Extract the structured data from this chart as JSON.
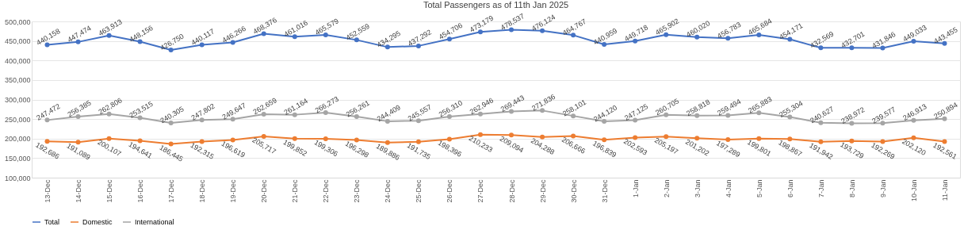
{
  "chart_data": {
    "type": "line",
    "title": "Total Passengers as of 11th Jan 2025",
    "categories": [
      "13-Dec",
      "14-Dec",
      "15-Dec",
      "16-Dec",
      "17-Dec",
      "18-Dec",
      "19-Dec",
      "20-Dec",
      "21-Dec",
      "22-Dec",
      "23-Dec",
      "24-Dec",
      "25-Dec",
      "26-Dec",
      "27-Dec",
      "28-Dec",
      "29-Dec",
      "30-Dec",
      "31-Dec",
      "1-Jan",
      "2-Jan",
      "3-Jan",
      "4-Jan",
      "5-Jan",
      "6-Jan",
      "7-Jan",
      "8-Jan",
      "9-Jan",
      "10-Jan",
      "11-Jan"
    ],
    "series": [
      {
        "name": "Total",
        "color": "#4472c4",
        "values": [
          440158,
          447474,
          463913,
          448156,
          426750,
          440117,
          446266,
          468376,
          461016,
          465579,
          452559,
          434295,
          437292,
          454706,
          473179,
          478537,
          476124,
          464767,
          440959,
          449718,
          465902,
          460020,
          456783,
          465684,
          454171,
          432569,
          432701,
          431846,
          449033,
          443455
        ],
        "value_labels": [
          "440,158",
          "447,474",
          "463,913",
          "448,156",
          "426,750",
          "440,117",
          "446,266",
          "468,376",
          "461,016",
          "465,579",
          "452,559",
          "434,295",
          "437,292",
          "454,706",
          "473,179",
          "478,537",
          "476,124",
          "464,767",
          "440,959",
          "449,718",
          "465,902",
          "460,020",
          "456,783",
          "465,684",
          "454,171",
          "432,569",
          "432,701",
          "431,846",
          "449,033",
          "443,455"
        ]
      },
      {
        "name": "Domestic",
        "color": "#ed7d31",
        "values": [
          192686,
          191089,
          200107,
          194641,
          186445,
          192315,
          196619,
          205717,
          199852,
          199306,
          196298,
          189886,
          191735,
          198396,
          210233,
          209094,
          204288,
          206666,
          196839,
          202593,
          205197,
          201202,
          197289,
          199801,
          198867,
          191942,
          193729,
          192269,
          202120,
          192561
        ],
        "value_labels": [
          "192,686",
          "191,089",
          "200,107",
          "194,641",
          "186,445",
          "192,315",
          "196,619",
          "205,717",
          "199,852",
          "199,306",
          "196,298",
          "189,886",
          "191,735",
          "198,396",
          "210,233",
          "209,094",
          "204,288",
          "206,666",
          "196,839",
          "202,593",
          "205,197",
          "201,202",
          "197,289",
          "199,801",
          "198,867",
          "191,942",
          "193,729",
          "192,269",
          "202,120",
          "192,561"
        ]
      },
      {
        "name": "International",
        "color": "#a5a5a5",
        "values": [
          247472,
          256385,
          262806,
          253515,
          240305,
          247802,
          249647,
          262659,
          261164,
          266273,
          256261,
          244409,
          245557,
          256310,
          262946,
          269443,
          271836,
          258101,
          244120,
          247125,
          260705,
          258818,
          259494,
          265883,
          255304,
          240627,
          238972,
          239577,
          246913,
          250894
        ],
        "value_labels": [
          "247,472",
          "256,385",
          "262,806",
          "253,515",
          "240,305",
          "247,802",
          "249,647",
          "262,659",
          "261,164",
          "266,273",
          "256,261",
          "244,409",
          "245,557",
          "256,310",
          "262,946",
          "269,443",
          "271,836",
          "258,101",
          "244,120",
          "247,125",
          "260,705",
          "258,818",
          "259,494",
          "265,883",
          "255,304",
          "240,627",
          "238,972",
          "239,577",
          "246,913",
          "250,894"
        ]
      }
    ],
    "ylim": [
      100000,
      500000
    ],
    "yticks": [
      {
        "value": 100000,
        "label": "100,000"
      },
      {
        "value": 150000,
        "label": "150,000"
      },
      {
        "value": 200000,
        "label": "200,000"
      },
      {
        "value": 250000,
        "label": "250,000"
      },
      {
        "value": 300000,
        "label": "300,000"
      },
      {
        "value": 350000,
        "label": "350,000"
      },
      {
        "value": 400000,
        "label": "400,000"
      },
      {
        "value": 450000,
        "label": "450,000"
      },
      {
        "value": 500000,
        "label": "500,000"
      }
    ],
    "grid": "y",
    "legend": "bottom",
    "marker": "circle",
    "line_style": "solid"
  }
}
